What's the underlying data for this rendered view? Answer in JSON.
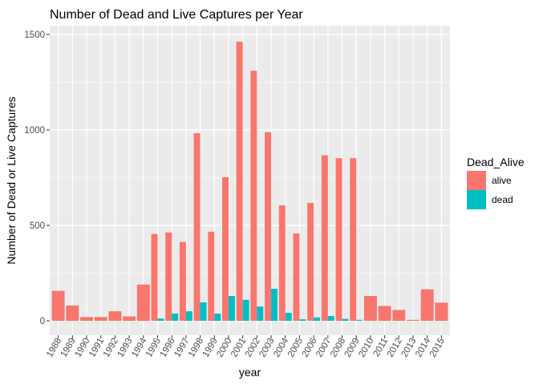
{
  "chart_data": {
    "type": "bar",
    "title": "Number of Dead and Live Captures per Year",
    "xlabel": "year",
    "ylabel": "Number of Dead or Live Captures",
    "ylim": [
      0,
      1550
    ],
    "yticks": [
      0,
      500,
      1000,
      1500
    ],
    "grid": true,
    "legend": {
      "title": "Dead_Alive",
      "placement": "right"
    },
    "categories": [
      "1988",
      "1989",
      "1990",
      "1991",
      "1992",
      "1993",
      "1994",
      "1995",
      "1996",
      "1997",
      "1998",
      "1999",
      "2000",
      "2001",
      "2002",
      "2003",
      "2004",
      "2005",
      "2006",
      "2007",
      "2008",
      "2009",
      "2010",
      "2011",
      "2012",
      "2013",
      "2014",
      "2015"
    ],
    "series": [
      {
        "name": "alive",
        "color": "#F8766D",
        "values": [
          157,
          80,
          20,
          20,
          50,
          23,
          190,
          455,
          463,
          413,
          983,
          467,
          752,
          1462,
          1310,
          988,
          605,
          458,
          618,
          867,
          852,
          852,
          130,
          78,
          57,
          5,
          165,
          95
        ]
      },
      {
        "name": "dead",
        "color": "#00BFC4",
        "values": [
          0,
          0,
          0,
          0,
          0,
          0,
          0,
          12,
          38,
          50,
          97,
          38,
          130,
          110,
          75,
          168,
          42,
          8,
          18,
          25,
          10,
          5,
          0,
          0,
          0,
          0,
          0,
          0
        ]
      }
    ]
  }
}
